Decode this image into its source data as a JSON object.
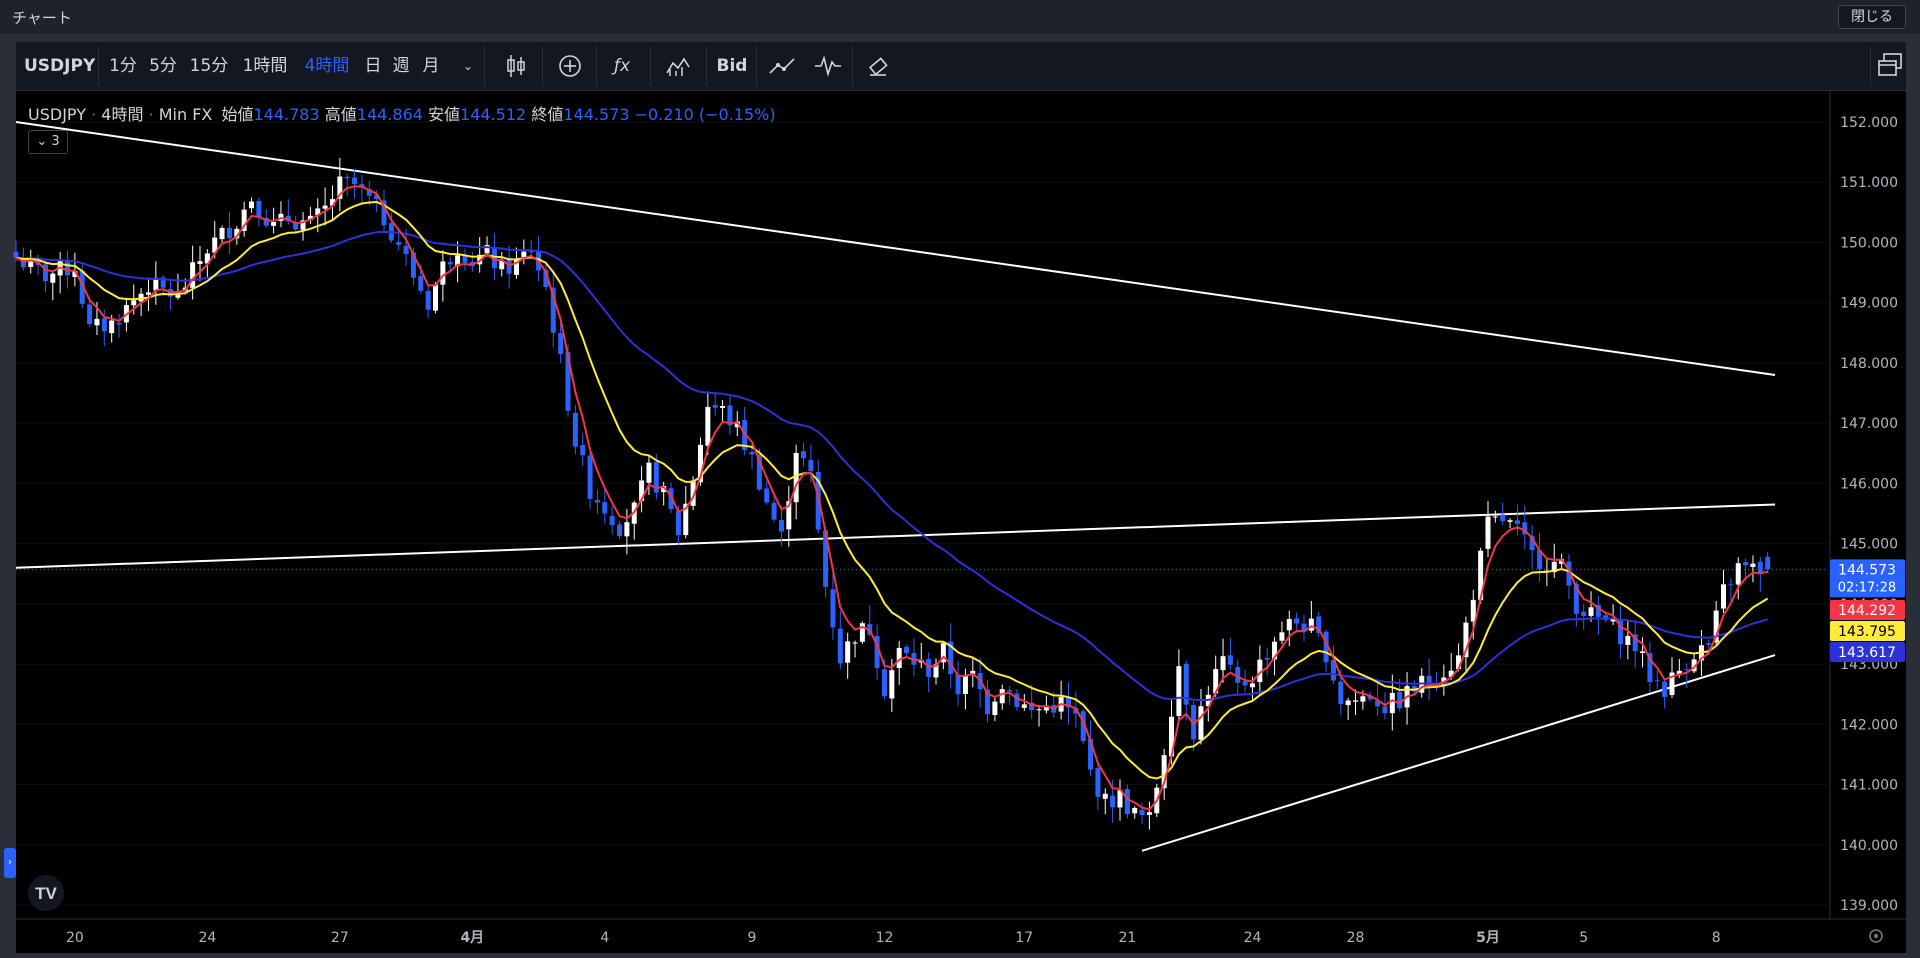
{
  "window": {
    "title": "チャート",
    "close_label": "閉じる"
  },
  "toolbar": {
    "symbol": "USDJPY",
    "intervals": [
      {
        "label": "1分",
        "active": false
      },
      {
        "label": "5分",
        "active": false
      },
      {
        "label": "15分",
        "active": false
      },
      {
        "label": "1時間",
        "active": false
      },
      {
        "label": "4時間",
        "active": true
      },
      {
        "label": "日",
        "active": false
      },
      {
        "label": "週",
        "active": false
      },
      {
        "label": "月",
        "active": false
      }
    ],
    "bid_label": "Bid"
  },
  "legend": {
    "symbol": "USDJPY",
    "interval": "4時間",
    "source": "Min FX",
    "open_label": "始値",
    "open": "144.783",
    "high_label": "高値",
    "high": "144.864",
    "low_label": "安値",
    "low": "144.512",
    "close_label": "終値",
    "close": "144.573",
    "change": "−0.210 (−0.15%)",
    "collapse_count": "3"
  },
  "colors": {
    "up": "#ffffff",
    "down": "#2962ff",
    "ma_fast": "#f23645",
    "ma_mid": "#ffeb3b",
    "ma_slow": "#2c32d8",
    "trendline": "#ffffff",
    "price_badge": "#2962ff"
  },
  "chart_data": {
    "type": "candlestick",
    "symbol": "USDJPY",
    "interval": "4時間",
    "y_ticks": [
      "139.000",
      "140.000",
      "141.000",
      "142.000",
      "143.000",
      "144.000",
      "145.000",
      "146.000",
      "147.000",
      "148.000",
      "149.000",
      "150.000",
      "151.000",
      "152.000"
    ],
    "ylim": [
      138.75,
      152.3
    ],
    "x_ticks": [
      "20",
      "24",
      "27",
      "4月",
      "4",
      "9",
      "12",
      "17",
      "21",
      "24",
      "28",
      "5月",
      "5",
      "8"
    ],
    "x_tick_index": [
      8,
      26,
      44,
      62,
      80,
      100,
      118,
      137,
      151,
      168,
      182,
      200,
      213,
      231
    ],
    "bar_count": 239,
    "last_price": {
      "value": 144.573,
      "label": "144.573",
      "countdown": "02:17:28"
    },
    "ma_labels": [
      {
        "name": "ma_fast",
        "value": 144.292,
        "label": "144.292"
      },
      {
        "name": "ma_mid",
        "value": 143.795,
        "label": "143.795"
      },
      {
        "name": "ma_slow",
        "value": 143.617,
        "label": "143.617"
      }
    ],
    "close_path": [
      [
        0,
        149.75
      ],
      [
        4,
        149.45
      ],
      [
        8,
        149.6
      ],
      [
        10,
        148.55
      ],
      [
        13,
        148.65
      ],
      [
        18,
        149.3
      ],
      [
        22,
        149.1
      ],
      [
        26,
        149.9
      ],
      [
        30,
        150.35
      ],
      [
        32,
        150.75
      ],
      [
        35,
        150.25
      ],
      [
        37,
        150.4
      ],
      [
        40,
        150.3
      ],
      [
        42,
        150.55
      ],
      [
        44,
        150.95
      ],
      [
        46,
        150.95
      ],
      [
        48,
        150.7
      ],
      [
        50,
        150.4
      ],
      [
        52,
        150.0
      ],
      [
        54,
        149.45
      ],
      [
        56,
        149.0
      ],
      [
        58,
        149.6
      ],
      [
        60,
        149.95
      ],
      [
        62,
        149.7
      ],
      [
        64,
        149.8
      ],
      [
        66,
        149.55
      ],
      [
        68,
        149.65
      ],
      [
        70,
        149.9
      ],
      [
        72,
        149.25
      ],
      [
        74,
        148.0
      ],
      [
        76,
        146.7
      ],
      [
        78,
        145.9
      ],
      [
        80,
        145.6
      ],
      [
        82,
        145.3
      ],
      [
        84,
        145.55
      ],
      [
        86,
        146.2
      ],
      [
        88,
        145.8
      ],
      [
        90,
        145.2
      ],
      [
        92,
        146.1
      ],
      [
        94,
        147.3
      ],
      [
        96,
        147.2
      ],
      [
        98,
        146.9
      ],
      [
        100,
        146.4
      ],
      [
        102,
        145.7
      ],
      [
        104,
        145.1
      ],
      [
        106,
        146.6
      ],
      [
        108,
        146.1
      ],
      [
        110,
        144.3
      ],
      [
        112,
        143.1
      ],
      [
        114,
        143.5
      ],
      [
        116,
        143.6
      ],
      [
        118,
        142.6
      ],
      [
        120,
        143.2
      ],
      [
        122,
        143.05
      ],
      [
        124,
        142.9
      ],
      [
        126,
        143.2
      ],
      [
        128,
        142.6
      ],
      [
        130,
        142.8
      ],
      [
        132,
        142.3
      ],
      [
        134,
        142.7
      ],
      [
        136,
        142.4
      ],
      [
        138,
        142.2
      ],
      [
        140,
        142.3
      ],
      [
        142,
        142.35
      ],
      [
        144,
        142.1
      ],
      [
        146,
        141.2
      ],
      [
        148,
        140.7
      ],
      [
        150,
        140.8
      ],
      [
        152,
        140.5
      ],
      [
        154,
        140.4
      ],
      [
        156,
        141.6
      ],
      [
        158,
        143.0
      ],
      [
        160,
        141.9
      ],
      [
        162,
        142.6
      ],
      [
        164,
        143.05
      ],
      [
        166,
        142.6
      ],
      [
        168,
        142.8
      ],
      [
        170,
        143.2
      ],
      [
        172,
        143.6
      ],
      [
        174,
        143.7
      ],
      [
        176,
        143.6
      ],
      [
        178,
        143.2
      ],
      [
        180,
        142.4
      ],
      [
        182,
        142.4
      ],
      [
        184,
        142.5
      ],
      [
        186,
        142.3
      ],
      [
        188,
        142.4
      ],
      [
        190,
        142.6
      ],
      [
        192,
        142.75
      ],
      [
        194,
        142.9
      ],
      [
        196,
        143.1
      ],
      [
        198,
        144.2
      ],
      [
        200,
        145.3
      ],
      [
        202,
        145.4
      ],
      [
        204,
        145.2
      ],
      [
        206,
        144.8
      ],
      [
        208,
        144.7
      ],
      [
        210,
        144.6
      ],
      [
        212,
        144.0
      ],
      [
        214,
        143.8
      ],
      [
        216,
        143.7
      ],
      [
        218,
        143.5
      ],
      [
        220,
        143.3
      ],
      [
        222,
        142.8
      ],
      [
        224,
        142.6
      ],
      [
        226,
        142.9
      ],
      [
        228,
        143.2
      ],
      [
        230,
        143.3
      ],
      [
        232,
        144.2
      ],
      [
        234,
        144.6
      ],
      [
        236,
        144.57
      ],
      [
        238,
        144.57
      ]
    ],
    "trendlines": [
      {
        "from": [
          0,
          152.0
        ],
        "to": [
          239,
          147.8
        ]
      },
      {
        "from": [
          0,
          144.6
        ],
        "to": [
          239,
          145.65
        ]
      },
      {
        "from": [
          153,
          139.9
        ],
        "to": [
          239,
          143.15
        ]
      }
    ]
  }
}
